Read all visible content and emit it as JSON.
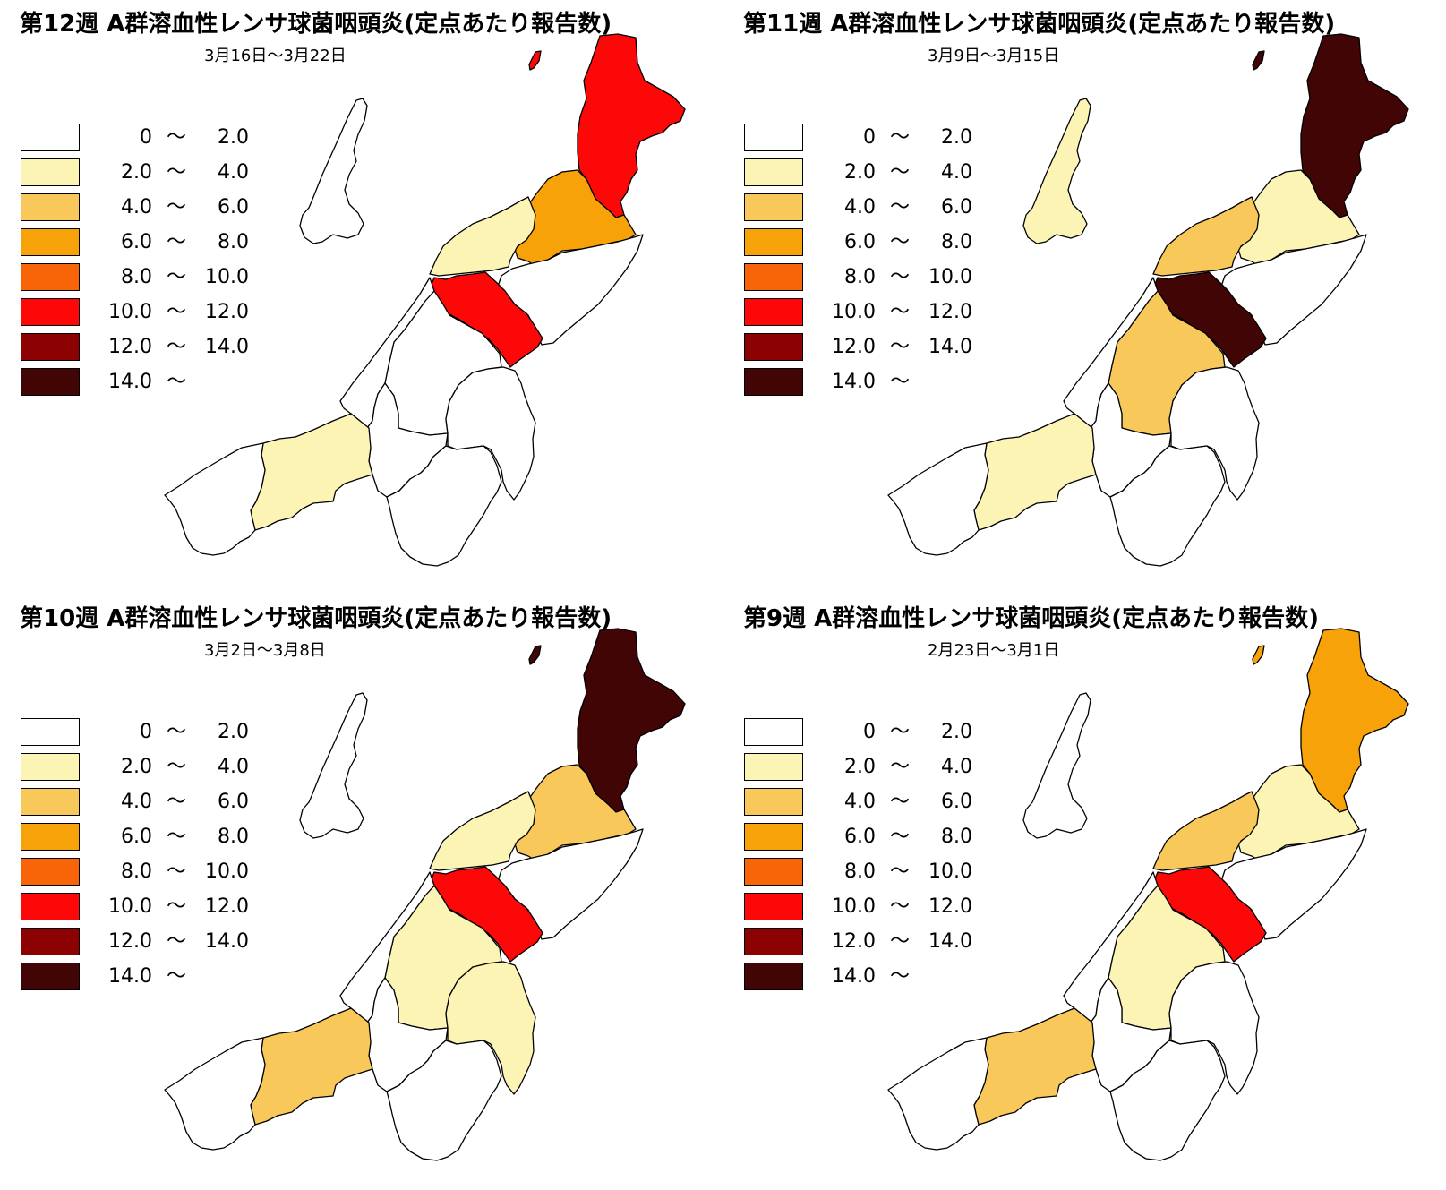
{
  "legend": {
    "items": [
      {
        "from": "0",
        "sep": "〜",
        "to": "2.0",
        "color": "#ffffff"
      },
      {
        "from": "2.0",
        "sep": "〜",
        "to": "4.0",
        "color": "#fbf4b4"
      },
      {
        "from": "4.0",
        "sep": "〜",
        "to": "6.0",
        "color": "#f9c85a"
      },
      {
        "from": "6.0",
        "sep": "〜",
        "to": "8.0",
        "color": "#f8a20a"
      },
      {
        "from": "8.0",
        "sep": "〜",
        "to": "10.0",
        "color": "#f86408"
      },
      {
        "from": "10.0",
        "sep": "〜",
        "to": "12.0",
        "color": "#fc0808"
      },
      {
        "from": "12.0",
        "sep": "〜",
        "to": "14.0",
        "color": "#8c0101"
      },
      {
        "from": "14.0",
        "sep": "〜",
        "to": "",
        "color": "#420505"
      }
    ]
  },
  "panels": [
    {
      "title": "第12週 A群溶血性レンサ球菌咽頭炎(定点あたり報告数)",
      "dates": "3月16日〜3月22日",
      "fills": {
        "sado": "#ffffff",
        "north": "#fc0808",
        "shibata": "#f8a20a",
        "niitsu": "#fbf4b4",
        "niigata": "#fc0808",
        "east": "#ffffff",
        "sanjo": "#ffffff",
        "kashiwazaki": "#ffffff",
        "nagaoka": "#ffffff",
        "uonuma": "#ffffff",
        "minamiuonuma": "#ffffff",
        "joetsu": "#fbf4b4",
        "itoigawa": "#ffffff",
        "islet": "#fc0808"
      }
    },
    {
      "title": "第11週 A群溶血性レンサ球菌咽頭炎(定点あたり報告数)",
      "dates": "3月9日〜3月15日",
      "fills": {
        "sado": "#fbf4b4",
        "north": "#420505",
        "shibata": "#fbf4b4",
        "niitsu": "#f9c85a",
        "niigata": "#420505",
        "east": "#ffffff",
        "sanjo": "#f9c85a",
        "kashiwazaki": "#ffffff",
        "nagaoka": "#ffffff",
        "uonuma": "#ffffff",
        "minamiuonuma": "#ffffff",
        "joetsu": "#fbf4b4",
        "itoigawa": "#ffffff",
        "islet": "#420505"
      }
    },
    {
      "title": "第10週 A群溶血性レンサ球菌咽頭炎(定点あたり報告数)",
      "dates": "3月2日〜3月8日",
      "fills": {
        "sado": "#ffffff",
        "north": "#420505",
        "shibata": "#f9c85a",
        "niitsu": "#fbf4b4",
        "niigata": "#fc0808",
        "east": "#ffffff",
        "sanjo": "#fbf4b4",
        "kashiwazaki": "#ffffff",
        "nagaoka": "#ffffff",
        "uonuma": "#fbf4b4",
        "minamiuonuma": "#ffffff",
        "joetsu": "#f9c85a",
        "itoigawa": "#ffffff",
        "islet": "#420505"
      }
    },
    {
      "title": "第9週 A群溶血性レンサ球菌咽頭炎(定点あたり報告数)",
      "dates": "2月23日〜3月1日",
      "fills": {
        "sado": "#ffffff",
        "north": "#f8a20a",
        "shibata": "#fbf4b4",
        "niitsu": "#f9c85a",
        "niigata": "#fc0808",
        "east": "#ffffff",
        "sanjo": "#fbf4b4",
        "kashiwazaki": "#ffffff",
        "nagaoka": "#ffffff",
        "uonuma": "#ffffff",
        "minamiuonuma": "#ffffff",
        "joetsu": "#f9c85a",
        "itoigawa": "#ffffff",
        "islet": "#f8a20a"
      }
    }
  ]
}
